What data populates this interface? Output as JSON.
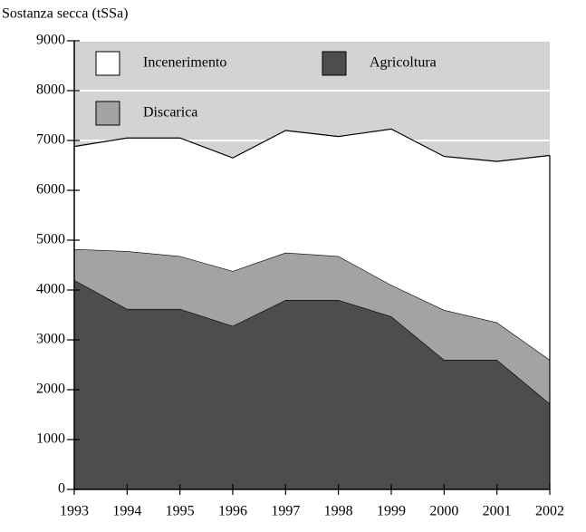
{
  "chart_data": {
    "type": "stacked_area",
    "ylabel": "Sostanza secca (tSSa)",
    "x": [
      1993,
      1994,
      1995,
      1996,
      1997,
      1998,
      1999,
      2000,
      2001,
      2002
    ],
    "xlim": [
      1993,
      2002
    ],
    "xticks": [
      1993,
      1994,
      1995,
      1996,
      1997,
      1998,
      1999,
      2000,
      2001,
      2002
    ],
    "ylim": [
      0,
      9000
    ],
    "yticks": [
      0,
      1000,
      2000,
      3000,
      4000,
      5000,
      6000,
      7000,
      8000,
      9000
    ],
    "grid": true,
    "legend": "top",
    "series": [
      {
        "name": "Agricoltura",
        "color": "#4d4d4d",
        "values": [
          4200,
          3620,
          3620,
          3280,
          3800,
          3800,
          3470,
          2600,
          2600,
          1720
        ]
      },
      {
        "name": "Discarica",
        "color": "#a3a3a3",
        "values": [
          620,
          1160,
          1060,
          1100,
          950,
          880,
          630,
          1000,
          750,
          880
        ]
      },
      {
        "name": "Incenerimento",
        "color": "#ffffff",
        "values": [
          2060,
          2270,
          2370,
          2270,
          2450,
          2400,
          3130,
          3080,
          3230,
          4100
        ]
      }
    ]
  }
}
